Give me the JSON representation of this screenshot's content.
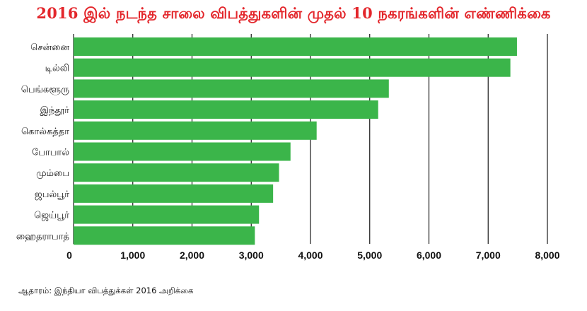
{
  "chart_data": {
    "type": "bar",
    "orientation": "horizontal",
    "title": "2016 இல் நடந்த சாலை விபத்துகளின் முதல் 10 நகரங்களின் எண்ணிக்கை",
    "categories": [
      "சென்னை",
      "டில்லி",
      "பெங்களூரு",
      "இந்தூர்",
      "கொல்கத்தா",
      "போபால்",
      "மும்பை",
      "ஜபல்பூர்",
      "ஜெய்பூர்",
      "ஹைதராபாத்"
    ],
    "values": [
      7486,
      7375,
      5323,
      5143,
      4104,
      3663,
      3469,
      3369,
      3131,
      3061
    ],
    "xlim": [
      0,
      8000
    ],
    "xticks": [
      0,
      1000,
      2000,
      3000,
      4000,
      5000,
      6000,
      7000,
      8000
    ],
    "xtick_labels": [
      "0",
      "1,000",
      "2,000",
      "3,000",
      "4,000",
      "5,000",
      "6,000",
      "7,000",
      "8,000"
    ],
    "grid": true,
    "bar_color": "#3bb54a",
    "grid_color": "#1a1a1a",
    "title_color": "#e3262b"
  },
  "source_note": "ஆதாரம்: இந்தியா விபத்துக்கள் 2016 அறிக்கை"
}
